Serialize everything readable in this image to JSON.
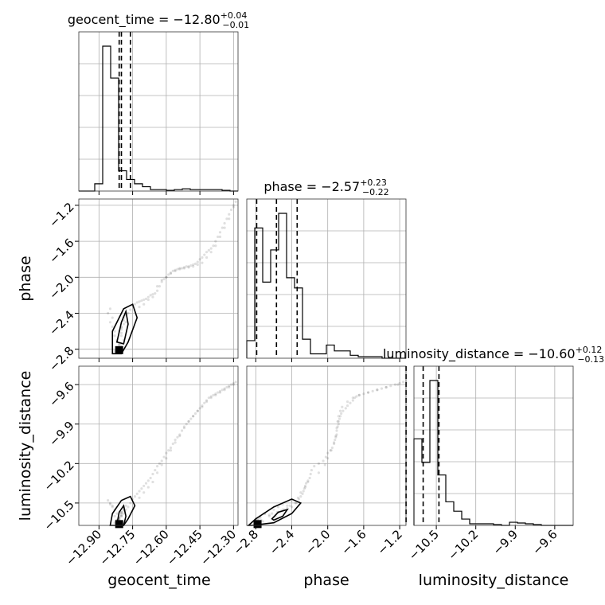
{
  "chart_data": {
    "type": "corner",
    "parameters": [
      "geocent_time",
      "phase",
      "luminosity_distance"
    ],
    "titles": [
      {
        "param": "geocent_time",
        "median": "-12.80",
        "plus": "+0.04",
        "minus": "-0.01"
      },
      {
        "param": "phase",
        "median": "-2.57",
        "plus": "+0.23",
        "minus": "-0.22"
      },
      {
        "param": "luminosity_distance",
        "median": "-10.60",
        "plus": "+0.12",
        "minus": "-0.13"
      }
    ],
    "ranges": {
      "geocent_time": [
        -12.99,
        -12.28
      ],
      "phase": [
        -2.9,
        -1.13
      ],
      "luminosity_distance": [
        -10.67,
        -9.46
      ]
    },
    "ticks": {
      "geocent_time": [
        -12.9,
        -12.75,
        -12.6,
        -12.45,
        -12.3
      ],
      "phase": [
        -2.8,
        -2.4,
        -2.0,
        -1.6,
        -1.2
      ],
      "luminosity_distance": [
        -10.5,
        -10.2,
        -9.9,
        -9.6
      ]
    },
    "tick_labels": {
      "geocent_time": [
        "−12.90",
        "−12.75",
        "−12.60",
        "−12.45",
        "−12.30"
      ],
      "phase": [
        "−2.8",
        "−2.4",
        "−2.0",
        "−1.6",
        "−1.2"
      ],
      "luminosity_distance": [
        "−10.5",
        "−10.2",
        "−9.9",
        "−9.6"
      ]
    },
    "quantiles": {
      "geocent_time": [
        -12.81,
        -12.8,
        -12.76
      ],
      "phase": [
        -2.79,
        -2.57,
        -2.34
      ],
      "luminosity_distance": [
        -10.73,
        -10.6,
        -10.48
      ]
    },
    "histograms": {
      "geocent_time": {
        "edges": [
          -12.99,
          -12.9545,
          -12.919,
          -12.8835,
          -12.848,
          -12.8125,
          -12.777,
          -12.7415,
          -12.706,
          -12.6705,
          -12.635,
          -12.5995,
          -12.564,
          -12.5285,
          -12.493,
          -12.4575,
          -12.422,
          -12.3865,
          -12.351,
          -12.3155,
          -12.28
        ],
        "counts": [
          0.0,
          0.0,
          0.05,
          1.0,
          0.78,
          0.14,
          0.08,
          0.05,
          0.03,
          0.01,
          0.01,
          0.005,
          0.01,
          0.015,
          0.01,
          0.01,
          0.01,
          0.01,
          0.005,
          0.0
        ]
      },
      "phase": {
        "edges": [
          -2.9,
          -2.8115,
          -2.723,
          -2.6345,
          -2.546,
          -2.4575,
          -2.369,
          -2.2805,
          -2.192,
          -2.1035,
          -2.015,
          -1.9265,
          -1.838,
          -1.7495,
          -1.661,
          -1.5725,
          -1.484,
          -1.3955,
          -1.307,
          -1.2185,
          -1.13
        ],
        "counts": [
          0.12,
          0.89,
          0.52,
          0.74,
          0.99,
          0.55,
          0.48,
          0.13,
          0.03,
          0.03,
          0.09,
          0.05,
          0.05,
          0.02,
          0.01,
          0.01,
          0.01,
          0.0,
          0.0,
          0.0
        ]
      },
      "luminosity_distance": {
        "edges": [
          -10.67,
          -10.6095,
          -10.549,
          -10.4885,
          -10.428,
          -10.3675,
          -10.307,
          -10.2465,
          -10.186,
          -10.1255,
          -10.065,
          -10.0045,
          -9.944,
          -9.8835,
          -9.823,
          -9.7625,
          -9.702,
          -9.6415,
          -9.581,
          -9.5205,
          -9.46
        ],
        "counts": [
          0.55,
          0.4,
          0.92,
          0.32,
          0.15,
          0.09,
          0.04,
          0.01,
          0.01,
          0.01,
          0.005,
          0.0,
          0.02,
          0.015,
          0.01,
          0.005,
          0.0,
          0.0,
          0.0,
          0.0
        ]
      }
    },
    "samples": {
      "geocent_time": [
        -12.81,
        -12.8,
        -12.79,
        -12.82,
        -12.8,
        -12.78,
        -12.81,
        -12.79,
        -12.8,
        -12.82,
        -12.77,
        -12.8,
        -12.81,
        -12.79,
        -12.83,
        -12.8,
        -12.78,
        -12.81,
        -12.8,
        -12.79,
        -12.76,
        -12.75,
        -12.74,
        -12.73,
        -12.72,
        -12.71,
        -12.7,
        -12.69,
        -12.68,
        -12.67,
        -12.66,
        -12.65,
        -12.64,
        -12.63,
        -12.62,
        -12.61,
        -12.6,
        -12.59,
        -12.58,
        -12.57,
        -12.56,
        -12.55,
        -12.54,
        -12.53,
        -12.52,
        -12.51,
        -12.5,
        -12.49,
        -12.48,
        -12.47,
        -12.46,
        -12.45,
        -12.44,
        -12.43,
        -12.42,
        -12.41,
        -12.4,
        -12.39,
        -12.38,
        -12.37,
        -12.36,
        -12.35,
        -12.34,
        -12.33,
        -12.32,
        -12.31,
        -12.3,
        -12.29,
        -12.72,
        -12.7,
        -12.68,
        -12.66,
        -12.64,
        -12.62,
        -12.6,
        -12.58,
        -12.56,
        -12.54,
        -12.52,
        -12.5,
        -12.48,
        -12.46,
        -12.44,
        -12.42,
        -12.4,
        -12.38,
        -12.36,
        -12.34,
        -12.32,
        -12.3,
        -12.84,
        -12.85,
        -12.83,
        -12.82,
        -12.86,
        -12.84,
        -12.83,
        -12.85,
        -12.82,
        -12.81
      ],
      "phase": [
        -2.8,
        -2.75,
        -2.7,
        -2.78,
        -2.55,
        -2.5,
        -2.6,
        -2.45,
        -2.65,
        -2.72,
        -2.4,
        -2.58,
        -2.77,
        -2.52,
        -2.82,
        -2.62,
        -2.42,
        -2.74,
        -2.56,
        -2.48,
        -2.36,
        -2.32,
        -2.3,
        -2.28,
        -2.27,
        -2.26,
        -2.25,
        -2.24,
        -2.22,
        -2.2,
        -2.19,
        -2.18,
        -2.15,
        -2.1,
        -2.05,
        -2.02,
        -2.0,
        -1.97,
        -1.95,
        -1.93,
        -1.92,
        -1.91,
        -1.9,
        -1.9,
        -1.89,
        -1.88,
        -1.88,
        -1.87,
        -1.86,
        -1.85,
        -1.83,
        -1.8,
        -1.78,
        -1.75,
        -1.72,
        -1.7,
        -1.68,
        -1.65,
        -1.6,
        -1.55,
        -1.5,
        -1.45,
        -1.4,
        -1.35,
        -1.3,
        -1.25,
        -1.2,
        -1.16,
        -2.33,
        -2.3,
        -2.25,
        -2.22,
        -2.1,
        -2.03,
        -2.0,
        -1.96,
        -1.93,
        -1.91,
        -1.9,
        -1.89,
        -1.88,
        -1.86,
        -1.84,
        -1.78,
        -1.72,
        -1.65,
        -1.55,
        -1.45,
        -1.35,
        -1.22,
        -2.45,
        -2.35,
        -2.6,
        -2.7,
        -2.4,
        -2.55,
        -2.65,
        -2.5,
        -2.8,
        -2.75
      ],
      "luminosity_distance": [
        -10.62,
        -10.6,
        -10.58,
        -10.63,
        -10.57,
        -10.55,
        -10.61,
        -10.54,
        -10.59,
        -10.64,
        -10.53,
        -10.6,
        -10.62,
        -10.56,
        -10.65,
        -10.58,
        -10.52,
        -10.63,
        -10.57,
        -10.55,
        -10.5,
        -10.47,
        -10.45,
        -10.43,
        -10.41,
        -10.39,
        -10.37,
        -10.35,
        -10.33,
        -10.31,
        -10.28,
        -10.25,
        -10.22,
        -10.2,
        -10.18,
        -10.15,
        -10.12,
        -10.1,
        -10.08,
        -10.05,
        -10.02,
        -10.0,
        -9.98,
        -9.95,
        -9.92,
        -9.9,
        -9.88,
        -9.86,
        -9.84,
        -9.82,
        -9.8,
        -9.78,
        -9.76,
        -9.74,
        -9.72,
        -9.7,
        -9.69,
        -9.68,
        -9.67,
        -9.66,
        -9.65,
        -9.64,
        -9.63,
        -9.62,
        -9.61,
        -9.6,
        -9.59,
        -9.58,
        -10.46,
        -10.42,
        -10.38,
        -10.34,
        -10.27,
        -10.21,
        -10.16,
        -10.1,
        -10.04,
        -9.99,
        -9.93,
        -9.88,
        -9.84,
        -9.8,
        -9.77,
        -9.73,
        -9.7,
        -9.68,
        -9.66,
        -9.64,
        -9.62,
        -9.6,
        -10.52,
        -10.5,
        -10.55,
        -10.58,
        -10.48,
        -10.53,
        -10.6,
        -10.51,
        -10.63,
        -10.61
      ]
    },
    "density_contours": [
      {
        "x": "geocent_time",
        "y": "phase",
        "inner": [
          [
            -12.82,
            -2.72
          ],
          [
            -12.8,
            -2.5
          ],
          [
            -12.78,
            -2.38
          ],
          [
            -12.77,
            -2.52
          ],
          [
            -12.79,
            -2.74
          ]
        ],
        "outer": [
          [
            -12.84,
            -2.85
          ],
          [
            -12.84,
            -2.6
          ],
          [
            -12.79,
            -2.35
          ],
          [
            -12.75,
            -2.3
          ],
          [
            -12.73,
            -2.45
          ],
          [
            -12.77,
            -2.72
          ],
          [
            -12.8,
            -2.85
          ]
        ],
        "peak": [
          -12.81,
          -2.81
        ]
      },
      {
        "x": "geocent_time",
        "y": "luminosity_distance",
        "inner": [
          [
            -12.82,
            -10.66
          ],
          [
            -12.81,
            -10.57
          ],
          [
            -12.79,
            -10.52
          ],
          [
            -12.78,
            -10.6
          ],
          [
            -12.79,
            -10.67
          ]
        ],
        "outer": [
          [
            -12.85,
            -10.67
          ],
          [
            -12.84,
            -10.58
          ],
          [
            -12.8,
            -10.48
          ],
          [
            -12.76,
            -10.45
          ],
          [
            -12.74,
            -10.52
          ],
          [
            -12.77,
            -10.62
          ],
          [
            -12.79,
            -10.67
          ]
        ],
        "peak": [
          -12.81,
          -10.66
        ]
      },
      {
        "x": "phase",
        "y": "luminosity_distance",
        "inner": [
          [
            -2.62,
            -10.62
          ],
          [
            -2.55,
            -10.57
          ],
          [
            -2.45,
            -10.55
          ],
          [
            -2.5,
            -10.6
          ],
          [
            -2.6,
            -10.63
          ]
        ],
        "outer": [
          [
            -2.88,
            -10.67
          ],
          [
            -2.8,
            -10.62
          ],
          [
            -2.6,
            -10.53
          ],
          [
            -2.4,
            -10.47
          ],
          [
            -2.3,
            -10.5
          ],
          [
            -2.4,
            -10.58
          ],
          [
            -2.6,
            -10.65
          ],
          [
            -2.85,
            -10.67
          ]
        ],
        "peak": [
          -2.78,
          -10.66
        ]
      }
    ],
    "grid": true,
    "legend": "none"
  }
}
